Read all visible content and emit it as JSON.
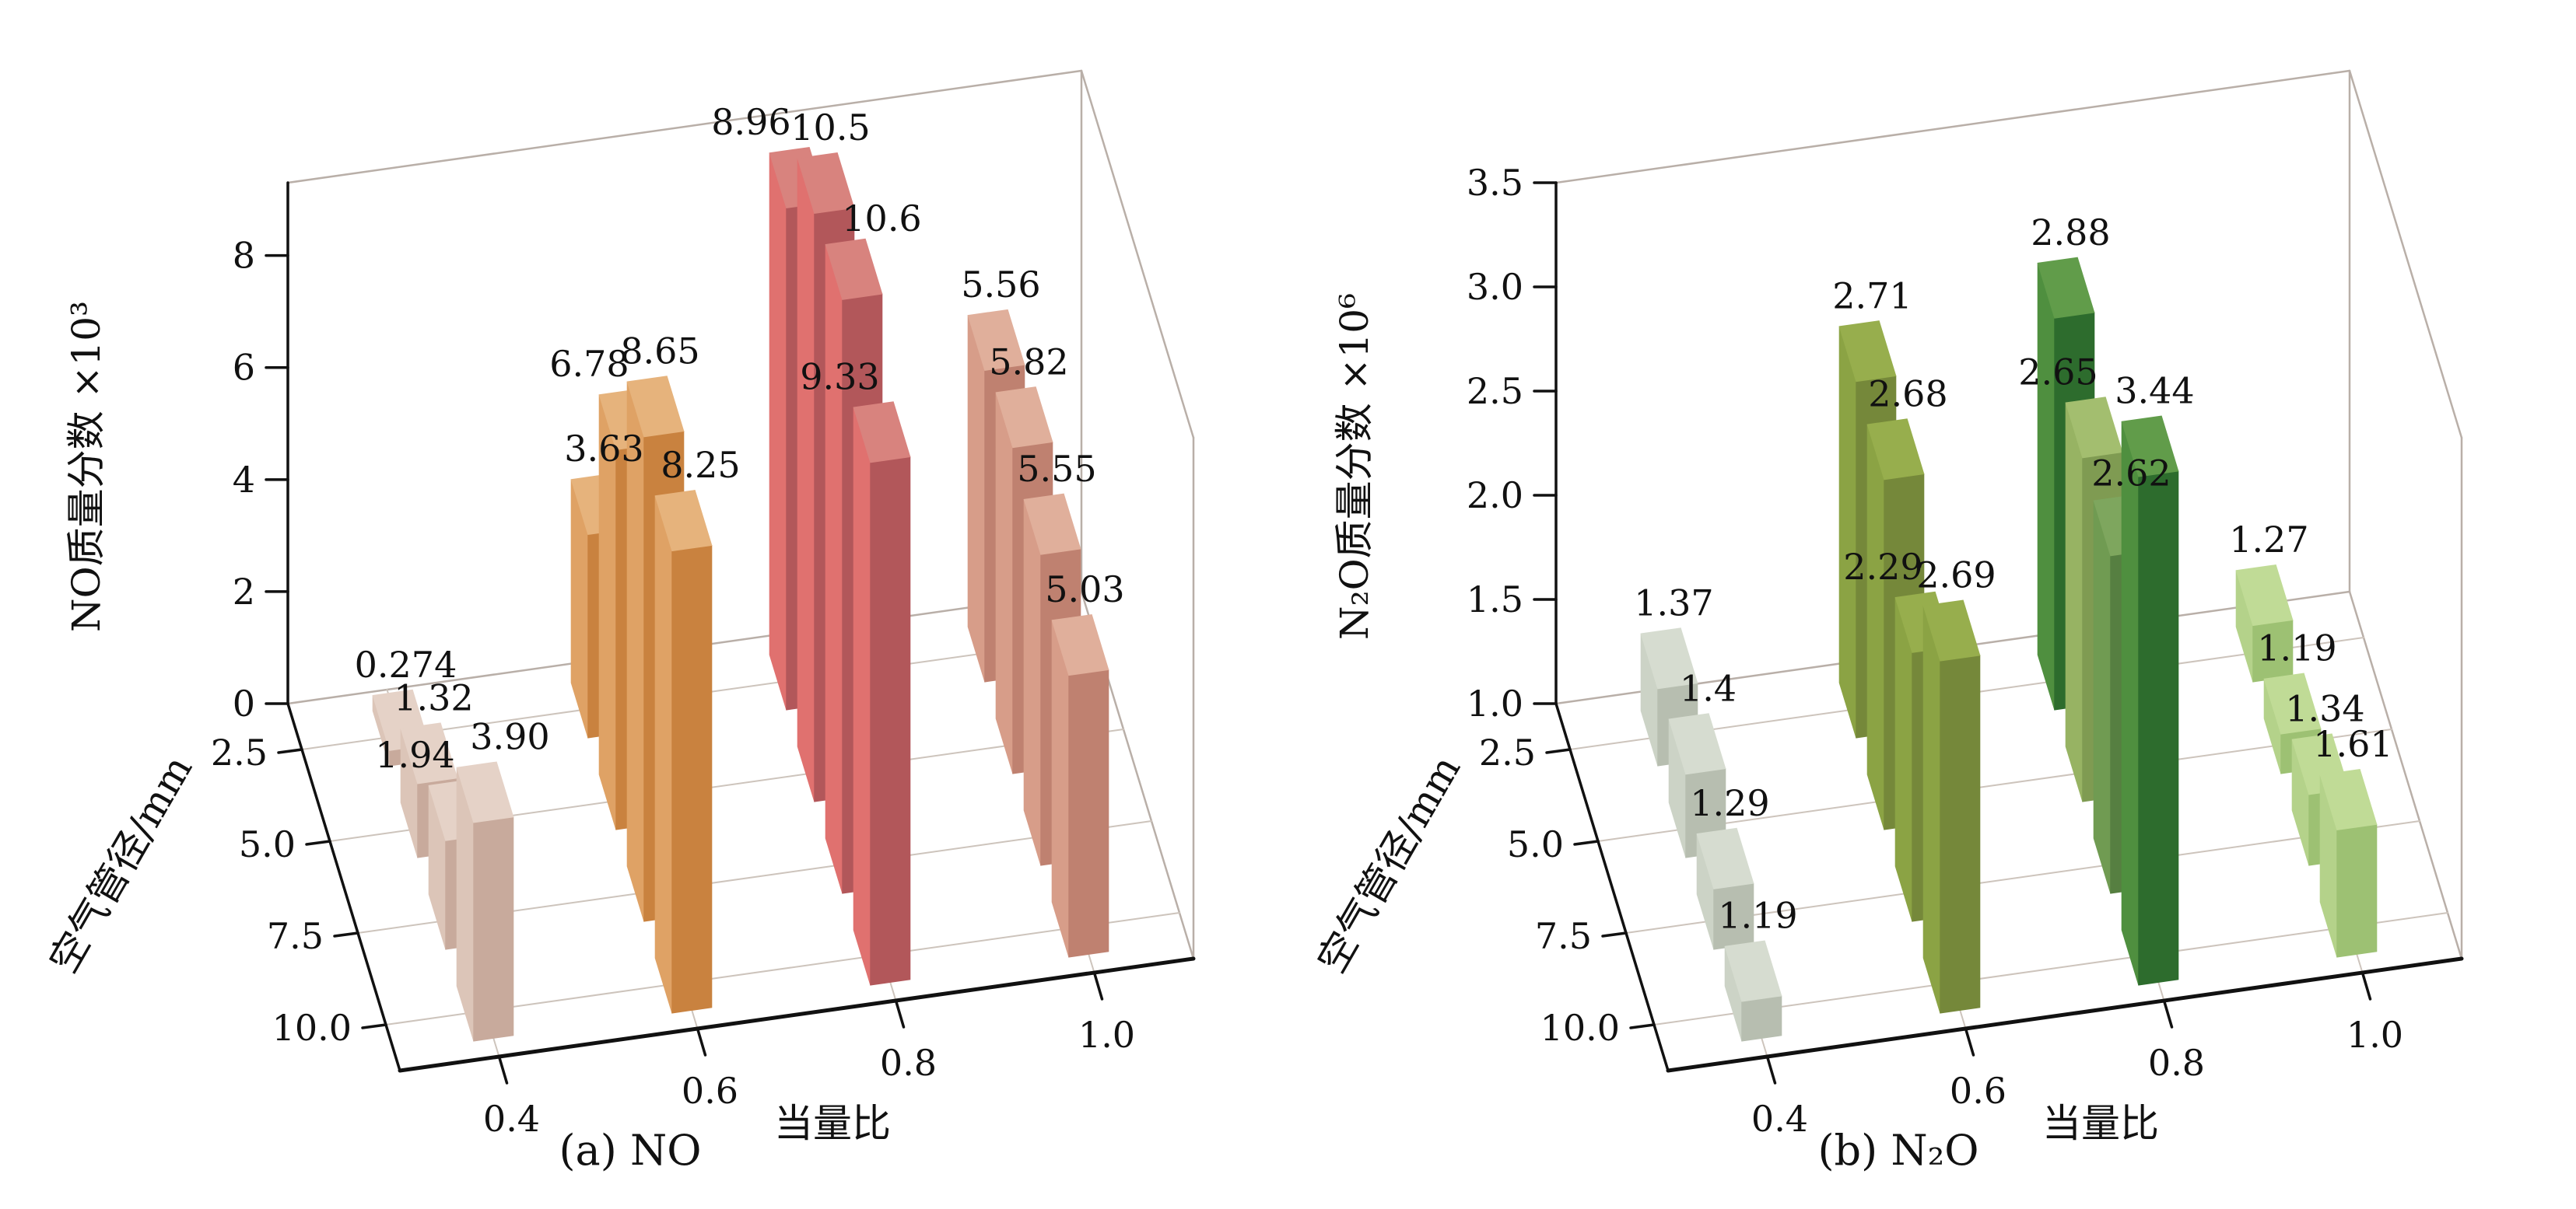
{
  "figure": {
    "background": "#ffffff"
  },
  "palettes": {
    "pink": {
      "front": "#c8aa9c",
      "side": "#dcc5b8",
      "top": "#e5d2c7"
    },
    "orange": {
      "front": "#c9823f",
      "side": "#dfa265",
      "top": "#e6b37c"
    },
    "red": {
      "front": "#b2575a",
      "side": "#e0716f",
      "top": "#d8837e"
    },
    "salmon": {
      "front": "#bf8170",
      "side": "#d79d89",
      "top": "#e0af9b"
    },
    "sage": {
      "front": "#b7beb0",
      "side": "#ccd3c6",
      "top": "#d6dcd0"
    },
    "olive": {
      "front": "#75883a",
      "side": "#8ba344",
      "top": "#97ae4d"
    },
    "olive-light": {
      "front": "#7f9b52",
      "side": "#97b363",
      "top": "#a3be6f"
    },
    "green-mid": {
      "front": "#567f41",
      "side": "#709b52",
      "top": "#7ea65e"
    },
    "forest": {
      "front": "#2d6c2d",
      "side": "#4f8f3f",
      "top": "#619c4a"
    },
    "leaf": {
      "front": "#9dc173",
      "side": "#b4d28a",
      "top": "#c0db96"
    }
  },
  "chart_data": [
    {
      "type": "bar",
      "projection": "3d",
      "caption": "(a) NO",
      "z_label": "NO质量分数 ×10³",
      "depth_label": "空气管径/mm",
      "x_label": "当量比",
      "x_ticks": [
        "0.4",
        "0.6",
        "0.8",
        "1.0"
      ],
      "depth_ticks": [
        "2.5",
        "5.0",
        "7.5",
        "10.0"
      ],
      "z_ticks": [
        {
          "v": 0,
          "label": "0"
        },
        {
          "v": 2,
          "label": "2"
        },
        {
          "v": 4,
          "label": "4"
        },
        {
          "v": 6,
          "label": "6"
        },
        {
          "v": 8,
          "label": "8"
        }
      ],
      "zmin": 0,
      "zmax": 9.3,
      "grid": true,
      "legend": "none",
      "groups": [
        {
          "x": "0.4",
          "palette": "pink",
          "bars": [
            {
              "d": "2.5",
              "v": 0.274,
              "label": "0.274"
            },
            {
              "d": "5.0",
              "v": 1.32,
              "label": "1.32"
            },
            {
              "d": "7.5",
              "v": 1.94,
              "label": "1.94",
              "label_dx": -60
            },
            {
              "d": "10.0",
              "v": 3.9,
              "label": "3.90",
              "label_dx": 26
            }
          ]
        },
        {
          "x": "0.6",
          "palette": "orange",
          "bars": [
            {
              "d": "2.5",
              "v": 3.63,
              "label": "3.63"
            },
            {
              "d": "5.0",
              "v": 6.78,
              "label": "6.78",
              "label_dx": -55
            },
            {
              "d": "7.5",
              "v": 8.65,
              "label": "8.65"
            },
            {
              "d": "10.0",
              "v": 8.25,
              "label": "8.25",
              "label_dx": 16
            }
          ]
        },
        {
          "x": "0.8",
          "palette": "red",
          "bars": [
            {
              "d": "2.5",
              "v": 8.96,
              "label": "8.96",
              "label_dx": -66
            },
            {
              "d": "5.0",
              "v": 10.5,
              "label": "10.5"
            },
            {
              "d": "7.5",
              "v": 10.6,
              "label": "10.6",
              "label_dx": 30,
              "label_dy": 6
            },
            {
              "d": "10.0",
              "v": 9.33,
              "label": "9.33",
              "label_dx": -60
            }
          ]
        },
        {
          "x": "1.0",
          "palette": "salmon",
          "bars": [
            {
              "d": "2.5",
              "v": 5.56,
              "label": "5.56"
            },
            {
              "d": "5.0",
              "v": 5.82,
              "label": "5.82"
            },
            {
              "d": "7.5",
              "v": 5.55,
              "label": "5.55"
            },
            {
              "d": "10.0",
              "v": 5.03,
              "label": "5.03"
            }
          ]
        }
      ]
    },
    {
      "type": "bar",
      "projection": "3d",
      "caption": "(b) N₂O",
      "z_label": "N₂O质量分数 ×10⁶",
      "depth_label": "空气管径/mm",
      "x_label": "当量比",
      "x_ticks": [
        "0.4",
        "0.6",
        "0.8",
        "1.0"
      ],
      "depth_ticks": [
        "2.5",
        "5.0",
        "7.5",
        "10.0"
      ],
      "z_ticks": [
        {
          "v": 1.0,
          "label": "1.0"
        },
        {
          "v": 1.5,
          "label": "1.5"
        },
        {
          "v": 2.0,
          "label": "2.0"
        },
        {
          "v": 2.5,
          "label": "2.5"
        },
        {
          "v": 3.0,
          "label": "3.0"
        },
        {
          "v": 3.5,
          "label": "3.5"
        }
      ],
      "zmin": 1.0,
      "zmax": 3.5,
      "grid": true,
      "legend": "none",
      "groups": [
        {
          "x": "0.4",
          "palette": "sage",
          "bars": [
            {
              "d": "2.5",
              "v": 1.37,
              "label": "1.37"
            },
            {
              "d": "5.0",
              "v": 1.4,
              "label": "1.4",
              "label_dx": 8
            },
            {
              "d": "7.5",
              "v": 1.29,
              "label": "1.29"
            },
            {
              "d": "10.0",
              "v": 1.19,
              "label": "1.19"
            }
          ]
        },
        {
          "x": "0.6",
          "palette": "olive",
          "bars": [
            {
              "d": "2.5",
              "v": 2.71,
              "label": "2.71"
            },
            {
              "d": "5.0",
              "v": 2.68,
              "label": "2.68",
              "label_dx": 10
            },
            {
              "d": "7.5",
              "v": 2.29,
              "label": "2.29",
              "label_dx": -58
            },
            {
              "d": "10.0",
              "v": 2.69,
              "label": "2.69"
            }
          ]
        },
        {
          "x": "0.8",
          "palette": "forest",
          "bars": [
            {
              "d": "2.5",
              "v": 2.88,
              "label": "2.88"
            },
            {
              "d": "5.0",
              "v": 2.65,
              "label": "2.65",
              "label_dx": -52,
              "palette": "olive-light"
            },
            {
              "d": "7.5",
              "v": 2.62,
              "label": "2.62",
              "label_dx": 6,
              "label_dy": 4,
              "palette": "green-mid"
            },
            {
              "d": "10.0",
              "v": 3.44,
              "label": "3.44"
            }
          ]
        },
        {
          "x": "1.0",
          "palette": "leaf",
          "bars": [
            {
              "d": "2.5",
              "v": 1.27,
              "label": "1.27"
            },
            {
              "d": "5.0",
              "v": 1.19,
              "label": "1.19"
            },
            {
              "d": "7.5",
              "v": 1.34,
              "label": "1.34"
            },
            {
              "d": "10.0",
              "v": 1.61,
              "label": "1.61"
            }
          ]
        }
      ]
    }
  ]
}
